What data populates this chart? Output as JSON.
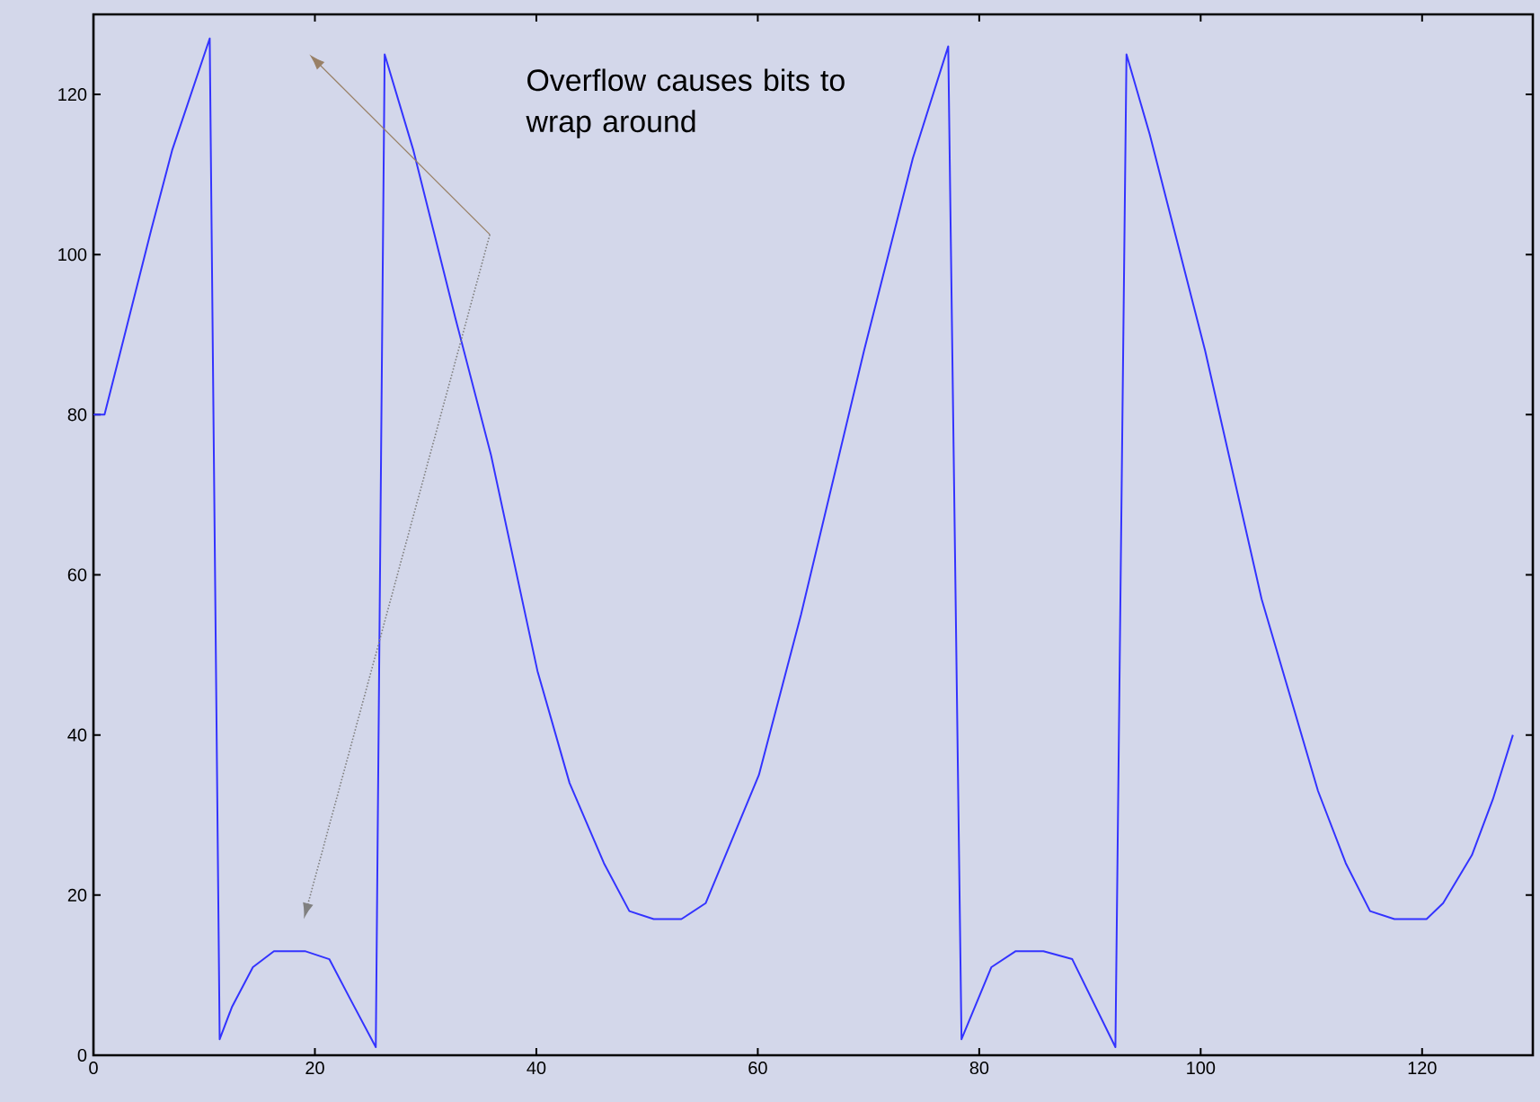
{
  "chart_data": {
    "type": "line",
    "x": [
      0,
      1,
      5.2,
      7.1,
      10.5,
      11.4,
      12.5,
      14.4,
      16.3,
      19.1,
      21.3,
      23.2,
      25.5,
      26.3,
      28.9,
      32.7,
      35.9,
      40.1,
      43.0,
      46.1,
      48.4,
      50.6,
      53.1,
      55.3,
      60.1,
      63.9,
      69.6,
      74.0,
      77.2,
      78.4,
      81.1,
      83.3,
      85.8,
      88.4,
      92.3,
      93.3,
      95.4,
      100.4,
      105.5,
      110.6,
      113.1,
      115.3,
      117.5,
      120.4,
      121.9,
      124.5,
      126.4,
      128.2
    ],
    "values": [
      80,
      80,
      103,
      113,
      127,
      2,
      6,
      11,
      13,
      13,
      12,
      7,
      1,
      125,
      113,
      92,
      75,
      48,
      34,
      24,
      18,
      17,
      17,
      19,
      35,
      55,
      88,
      112,
      126,
      2,
      11,
      13,
      13,
      12,
      1,
      125,
      115,
      88,
      57,
      33,
      24,
      18,
      17,
      17,
      19,
      25,
      32,
      40
    ],
    "color": "#3333ff",
    "xlim": [
      0,
      130
    ],
    "ylim": [
      0,
      130
    ],
    "xticks": [
      0,
      20,
      40,
      60,
      80,
      100,
      120
    ],
    "yticks": [
      0,
      20,
      40,
      60,
      80,
      100,
      120
    ],
    "annotations": [
      "Overflow causes bits to wrap around"
    ]
  }
}
